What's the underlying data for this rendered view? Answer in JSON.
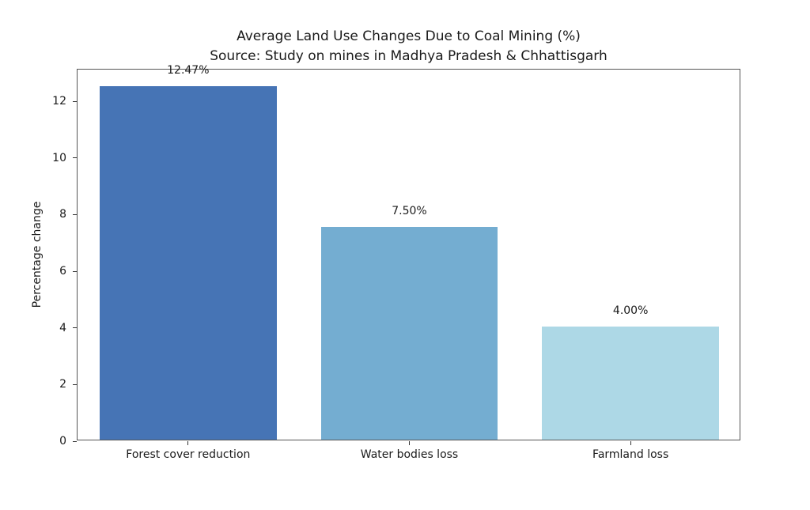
{
  "chart_data": {
    "type": "bar",
    "title": "Average Land Use Changes Due to Coal Mining (%)",
    "subtitle": "Source: Study on mines in Madhya Pradesh & Chhattisgarh",
    "xlabel": "",
    "ylabel": "Percentage change",
    "categories": [
      "Forest cover reduction",
      "Water bodies loss",
      "Farmland loss"
    ],
    "values": [
      12.47,
      7.5,
      4.0
    ],
    "value_labels": [
      "12.47%",
      "7.50%",
      "4.00%"
    ],
    "bar_colors": [
      "#4674b5",
      "#74add1",
      "#add8e6"
    ],
    "yticks": [
      0,
      2,
      4,
      6,
      8,
      10,
      12
    ],
    "ylim": [
      0,
      13.12
    ],
    "grid": false,
    "legend_position": "none",
    "spine_color": "#555555",
    "text_color": "#1a1a1a"
  }
}
